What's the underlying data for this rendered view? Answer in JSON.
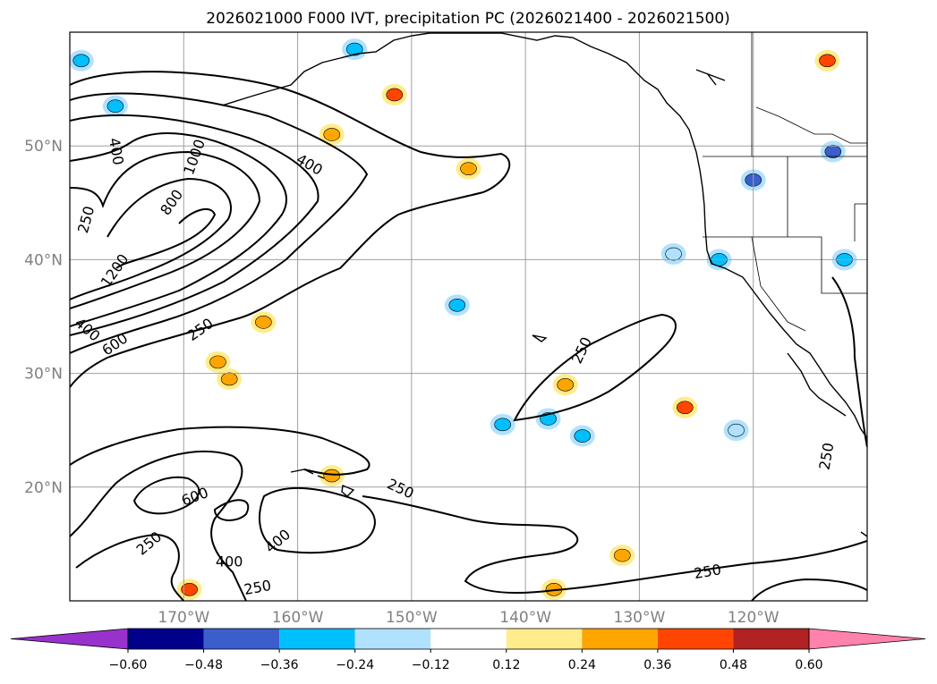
{
  "chart_data": {
    "type": "map",
    "title": "2026021000 F000 IVT, precipitation PC (2026021400 - 2026021500)",
    "lon_range": [
      -180,
      -110
    ],
    "lat_range": [
      10,
      60
    ],
    "lat_ticks": [
      {
        "lat": 50,
        "label": "50°N"
      },
      {
        "lat": 40,
        "label": "40°N"
      },
      {
        "lat": 30,
        "label": "30°N"
      },
      {
        "lat": 20,
        "label": "20°N"
      }
    ],
    "lon_ticks": [
      {
        "lon": -170,
        "label": "170°W"
      },
      {
        "lon": -160,
        "label": "160°W"
      },
      {
        "lon": -150,
        "label": "150°W"
      },
      {
        "lon": -140,
        "label": "140°W"
      },
      {
        "lon": -130,
        "label": "130°W"
      },
      {
        "lon": -120,
        "label": "120°W"
      }
    ],
    "gridlines": true,
    "colorbar": {
      "levels": [
        -0.6,
        -0.48,
        -0.36,
        -0.24,
        -0.12,
        0.12,
        0.24,
        0.36,
        0.48,
        0.6
      ],
      "tick_labels": [
        "−0.60",
        "−0.48",
        "−0.36",
        "−0.24",
        "−0.12",
        "0.12",
        "0.24",
        "0.36",
        "0.48",
        "0.60"
      ],
      "colors": [
        "#9932CC",
        "#00008B",
        "#3A5FCD",
        "#00BFFF",
        "#B0E2FF",
        "#FFFFFF",
        "#FFEC8B",
        "#FFA500",
        "#FF4500",
        "#B22222",
        "#FF82AB"
      ],
      "extend": "both"
    },
    "ivt_contour_levels": [
      250,
      400,
      600,
      800,
      1000,
      1200
    ],
    "contour_labels": [
      {
        "text": "400",
        "lon": -176,
        "lat": 49.5,
        "rot": 80
      },
      {
        "text": "1000",
        "lon": -169,
        "lat": 49,
        "rot": -70
      },
      {
        "text": "800",
        "lon": -171,
        "lat": 45,
        "rot": -55
      },
      {
        "text": "250",
        "lon": -178.5,
        "lat": 43.5,
        "rot": -75
      },
      {
        "text": "400",
        "lon": -159,
        "lat": 48.3,
        "rot": 30
      },
      {
        "text": "1200",
        "lon": -176,
        "lat": 39,
        "rot": -55
      },
      {
        "text": "400",
        "lon": -178.5,
        "lat": 33.8,
        "rot": 40
      },
      {
        "text": "600",
        "lon": -176,
        "lat": 32.5,
        "rot": -35
      },
      {
        "text": "250",
        "lon": -168.5,
        "lat": 33.8,
        "rot": -35
      },
      {
        "text": "250",
        "lon": -135,
        "lat": 32,
        "rot": -65
      },
      {
        "text": "250",
        "lon": -113.5,
        "lat": 22.7,
        "rot": -80
      },
      {
        "text": "250",
        "lon": -151,
        "lat": 19.8,
        "rot": 25
      },
      {
        "text": "600",
        "lon": -169,
        "lat": 19.1,
        "rot": -20
      },
      {
        "text": "400",
        "lon": -161.7,
        "lat": 15.2,
        "rot": -40
      },
      {
        "text": "250",
        "lon": -173,
        "lat": 15,
        "rot": -40
      },
      {
        "text": "400",
        "lon": -166,
        "lat": 13.4,
        "rot": 0
      },
      {
        "text": "250",
        "lon": -163.5,
        "lat": 11.1,
        "rot": -10
      },
      {
        "text": "250",
        "lon": -124,
        "lat": 12.5,
        "rot": -10
      }
    ],
    "precip_blobs": [
      {
        "lon": -145,
        "lat": 48,
        "color": "#FFA500"
      },
      {
        "lon": -157,
        "lat": 51,
        "color": "#FFA500"
      },
      {
        "lon": -167,
        "lat": 31,
        "color": "#FFA500"
      },
      {
        "lon": -166,
        "lat": 29.5,
        "color": "#FFA500"
      },
      {
        "lon": -136.5,
        "lat": 29,
        "color": "#FFA500"
      },
      {
        "lon": -126,
        "lat": 27,
        "color": "#FF4500"
      },
      {
        "lon": -113.5,
        "lat": 57.5,
        "color": "#FF4500"
      },
      {
        "lon": -151.5,
        "lat": 54.5,
        "color": "#FF4500"
      },
      {
        "lon": -163,
        "lat": 34.5,
        "color": "#FFA500"
      },
      {
        "lon": -169.5,
        "lat": 11,
        "color": "#FF4500"
      },
      {
        "lon": -157,
        "lat": 21,
        "color": "#FFA500"
      },
      {
        "lon": -137.5,
        "lat": 11,
        "color": "#FFA500"
      },
      {
        "lon": -131.5,
        "lat": 14,
        "color": "#FFA500"
      },
      {
        "lon": -113,
        "lat": 49.5,
        "color": "#3A5FCD"
      },
      {
        "lon": -120,
        "lat": 47,
        "color": "#3A5FCD"
      },
      {
        "lon": -142,
        "lat": 25.5,
        "color": "#00BFFF"
      },
      {
        "lon": -138,
        "lat": 26,
        "color": "#00BFFF"
      },
      {
        "lon": -135,
        "lat": 24.5,
        "color": "#00BFFF"
      },
      {
        "lon": -155,
        "lat": 58.5,
        "color": "#00BFFF"
      },
      {
        "lon": -179,
        "lat": 57.5,
        "color": "#00BFFF"
      },
      {
        "lon": -176,
        "lat": 53.5,
        "color": "#00BFFF"
      },
      {
        "lon": -146,
        "lat": 36,
        "color": "#00BFFF"
      },
      {
        "lon": -123,
        "lat": 40,
        "color": "#00BFFF"
      },
      {
        "lon": -112,
        "lat": 40,
        "color": "#00BFFF"
      },
      {
        "lon": -121.5,
        "lat": 25,
        "color": "#B0E2FF"
      },
      {
        "lon": -127,
        "lat": 40.5,
        "color": "#B0E2FF"
      }
    ]
  }
}
